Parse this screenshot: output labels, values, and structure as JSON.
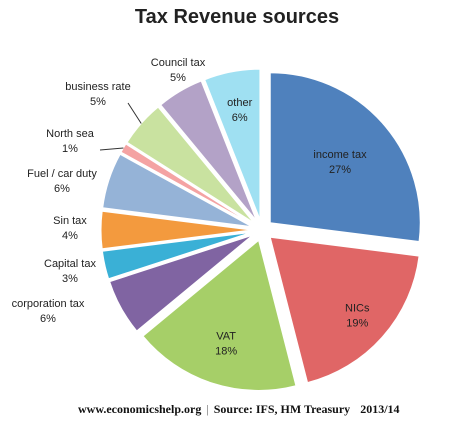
{
  "chart_data": {
    "type": "pie",
    "title": "Tax Revenue sources",
    "exploded": true,
    "slices": [
      {
        "name": "income tax",
        "pct_label": "27%",
        "value": 27,
        "color": "#4f81bd"
      },
      {
        "name": "NICs",
        "pct_label": "19%",
        "value": 19,
        "color": "#e06666"
      },
      {
        "name": "VAT",
        "pct_label": "18%",
        "value": 18,
        "color": "#a6cf68"
      },
      {
        "name": "corporation tax",
        "pct_label": "6%",
        "value": 6,
        "color": "#8064a2"
      },
      {
        "name": "Capital tax",
        "pct_label": "3%",
        "value": 3,
        "color": "#3ab0d6"
      },
      {
        "name": "Sin tax",
        "pct_label": "4%",
        "value": 4,
        "color": "#f39a3e"
      },
      {
        "name": "Fuel / car duty",
        "pct_label": "6%",
        "value": 6,
        "color": "#95b3d7"
      },
      {
        "name": "North sea",
        "pct_label": "1%",
        "value": 1,
        "color": "#f4a3a3"
      },
      {
        "name": "business rate",
        "pct_label": "5%",
        "value": 5,
        "color": "#c9e2a0"
      },
      {
        "name": "Council tax",
        "pct_label": "5%",
        "value": 5,
        "color": "#b3a2c7"
      },
      {
        "name": "other",
        "pct_label": "6%",
        "value": 6,
        "color": "#9fe0f2"
      }
    ]
  },
  "footer": {
    "website": "www.economicshelp.org",
    "source": "Source: IFS, HM Treasury",
    "year": "2013/14"
  }
}
